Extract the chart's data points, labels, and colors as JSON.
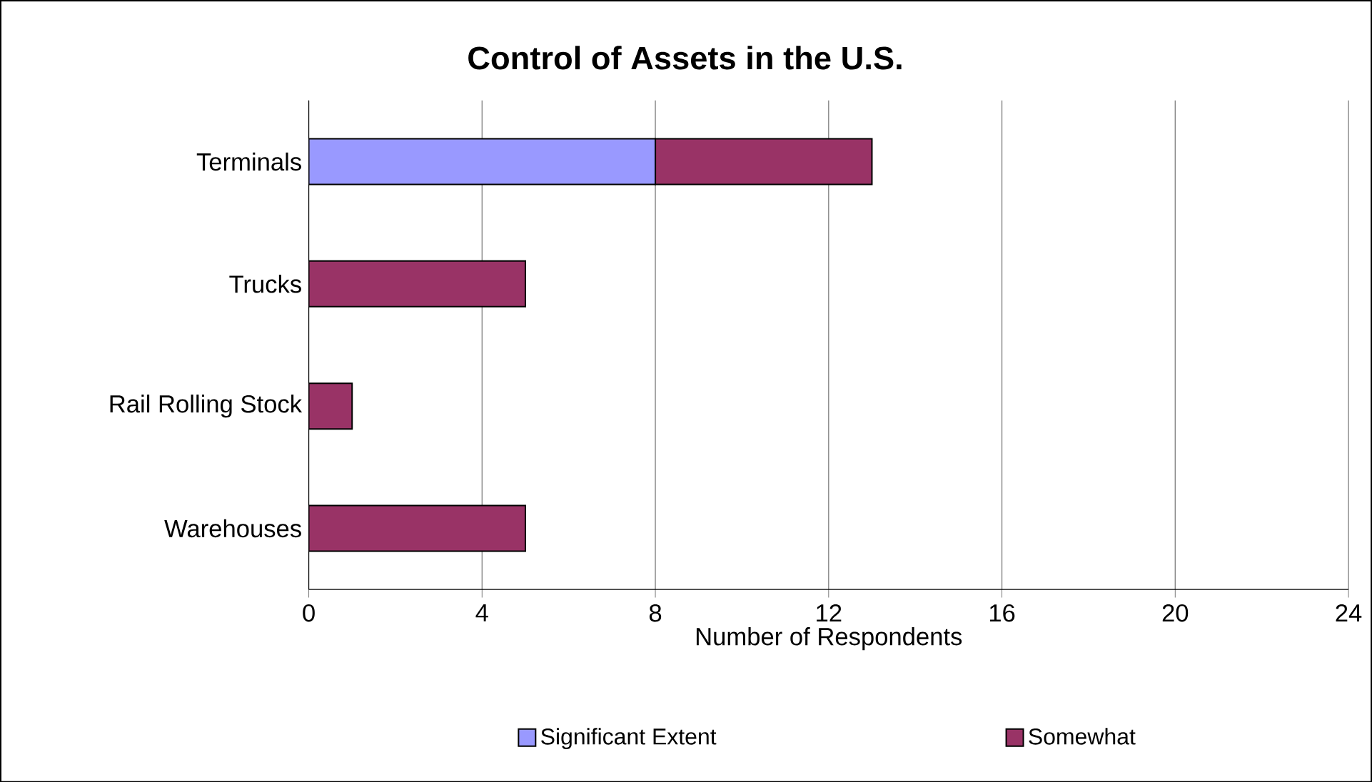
{
  "chart_data": {
    "type": "bar",
    "title": "Control of Assets in the U.S.",
    "xlabel": "Number of Respondents",
    "orientation": "horizontal",
    "stacked": true,
    "categories": [
      "Terminals",
      "Trucks",
      "Rail Rolling Stock",
      "Warehouses"
    ],
    "series": [
      {
        "name": "Significant Extent",
        "color": "#9999ff",
        "values": [
          8,
          0,
          0,
          0
        ]
      },
      {
        "name": "Somewhat",
        "color": "#993366",
        "values": [
          5,
          5,
          1,
          5
        ]
      }
    ],
    "xlim": [
      0,
      24
    ],
    "xticks": [
      0,
      4,
      8,
      12,
      16,
      20,
      24
    ],
    "grid": "x",
    "legend": "bottom"
  }
}
